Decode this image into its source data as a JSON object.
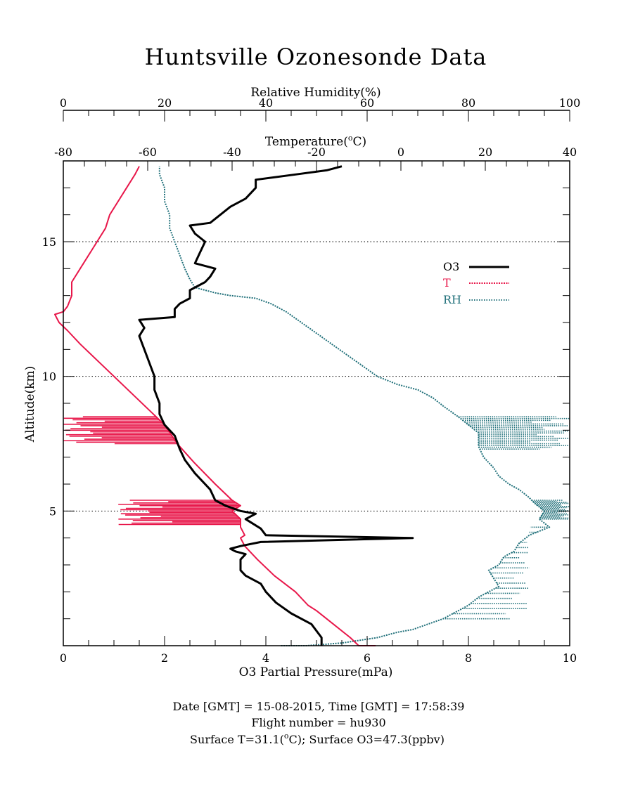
{
  "chart_data": {
    "type": "line",
    "title": "Huntsville Ozonesonde Data",
    "axes": {
      "altitude": {
        "label": "Altitude(km)",
        "range": [
          0,
          18
        ],
        "ticks": [
          5,
          10,
          15
        ]
      },
      "o3": {
        "label": "O3 Partial Pressure(mPa)",
        "range": [
          0,
          10
        ],
        "ticks": [
          0,
          2,
          4,
          6,
          8,
          10
        ]
      },
      "temperature": {
        "label_main": "Temperature(",
        "label_sup": "o",
        "label_tail": "C)",
        "range": [
          -80,
          40
        ],
        "ticks": [
          -80,
          -60,
          -40,
          -20,
          0,
          20,
          40
        ]
      },
      "rh": {
        "label": "Relative Humidity(%)",
        "range": [
          0,
          100
        ],
        "ticks": [
          0,
          20,
          40,
          60,
          80,
          100
        ]
      }
    },
    "grid": "dotted horizontal lines at 5, 10, 15 km",
    "legend_position": "right",
    "legend": [
      {
        "label": "O3",
        "color": "#000000"
      },
      {
        "label": "T",
        "color": "#e8174a"
      },
      {
        "label": "RH",
        "color": "#20707a"
      }
    ],
    "series": [
      {
        "name": "O3",
        "axis": "o3",
        "color": "#000000",
        "points": [
          [
            5.1,
            0.0
          ],
          [
            5.1,
            0.3
          ],
          [
            4.9,
            0.8
          ],
          [
            4.5,
            1.2
          ],
          [
            4.2,
            1.6
          ],
          [
            4.0,
            2.0
          ],
          [
            3.9,
            2.3
          ],
          [
            3.6,
            2.6
          ],
          [
            3.5,
            2.8
          ],
          [
            3.5,
            3.2
          ],
          [
            3.6,
            3.4
          ],
          [
            3.4,
            3.5
          ],
          [
            3.3,
            3.6
          ],
          [
            3.5,
            3.7
          ],
          [
            3.9,
            3.85
          ],
          [
            6.9,
            4.0
          ],
          [
            4.0,
            4.1
          ],
          [
            3.9,
            4.35
          ],
          [
            3.6,
            4.7
          ],
          [
            3.8,
            4.9
          ],
          [
            3.5,
            5.0
          ],
          [
            3.2,
            5.2
          ],
          [
            3.0,
            5.4
          ],
          [
            2.9,
            5.8
          ],
          [
            2.8,
            6.0
          ],
          [
            2.6,
            6.4
          ],
          [
            2.4,
            6.9
          ],
          [
            2.3,
            7.3
          ],
          [
            2.2,
            7.8
          ],
          [
            2.0,
            8.2
          ],
          [
            1.9,
            8.6
          ],
          [
            1.9,
            9.0
          ],
          [
            1.8,
            9.5
          ],
          [
            1.8,
            10.0
          ],
          [
            1.7,
            10.5
          ],
          [
            1.6,
            11.0
          ],
          [
            1.5,
            11.5
          ],
          [
            1.6,
            11.8
          ],
          [
            1.5,
            12.1
          ],
          [
            2.2,
            12.2
          ],
          [
            2.2,
            12.5
          ],
          [
            2.3,
            12.7
          ],
          [
            2.5,
            12.9
          ],
          [
            2.5,
            13.2
          ],
          [
            2.8,
            13.5
          ],
          [
            2.9,
            13.7
          ],
          [
            3.0,
            14.0
          ],
          [
            2.6,
            14.2
          ],
          [
            2.7,
            14.6
          ],
          [
            2.8,
            15.0
          ],
          [
            2.6,
            15.3
          ],
          [
            2.5,
            15.6
          ],
          [
            2.9,
            15.7
          ],
          [
            3.1,
            16.0
          ],
          [
            3.3,
            16.3
          ],
          [
            3.6,
            16.6
          ],
          [
            3.8,
            17.0
          ],
          [
            3.8,
            17.3
          ],
          [
            4.6,
            17.5
          ],
          [
            5.2,
            17.65
          ],
          [
            5.5,
            17.8
          ]
        ]
      },
      {
        "name": "T",
        "axis": "temperature",
        "color": "#e8174a",
        "points": [
          [
            -6,
            0.0
          ],
          [
            -10,
            0.0
          ],
          [
            -12,
            0.3
          ],
          [
            -16,
            0.8
          ],
          [
            -20,
            1.3
          ],
          [
            -22,
            1.5
          ],
          [
            -25,
            2.0
          ],
          [
            -30,
            2.6
          ],
          [
            -34,
            3.2
          ],
          [
            -37,
            3.7
          ],
          [
            -38,
            4.0
          ],
          [
            -37,
            4.1
          ],
          [
            -38,
            4.4
          ],
          [
            -38,
            4.7
          ],
          [
            -40,
            5.0
          ],
          [
            -38,
            5.2
          ],
          [
            -40,
            5.4
          ],
          [
            -44,
            6.0
          ],
          [
            -49,
            6.8
          ],
          [
            -53,
            7.5
          ],
          [
            -56,
            8.2
          ],
          [
            -60,
            8.8
          ],
          [
            -64,
            9.4
          ],
          [
            -68,
            10.0
          ],
          [
            -72,
            10.6
          ],
          [
            -76,
            11.2
          ],
          [
            -79,
            11.7
          ],
          [
            -81,
            12.0
          ],
          [
            -82,
            12.3
          ],
          [
            -80,
            12.4
          ],
          [
            -79,
            12.6
          ],
          [
            -78,
            13.0
          ],
          [
            -78,
            13.5
          ],
          [
            -76,
            14.0
          ],
          [
            -74,
            14.5
          ],
          [
            -72,
            15.0
          ],
          [
            -70,
            15.5
          ],
          [
            -69,
            16.0
          ],
          [
            -67,
            16.5
          ],
          [
            -65,
            17.0
          ],
          [
            -63,
            17.5
          ],
          [
            -62,
            17.8
          ]
        ]
      },
      {
        "name": "RH",
        "axis": "rh",
        "color": "#20707a",
        "points": [
          [
            43,
            0.0
          ],
          [
            48,
            0.0
          ],
          [
            55,
            0.1
          ],
          [
            62,
            0.3
          ],
          [
            66,
            0.5
          ],
          [
            69,
            0.6
          ],
          [
            72,
            0.8
          ],
          [
            75,
            1.0
          ],
          [
            78,
            1.3
          ],
          [
            80,
            1.5
          ],
          [
            82,
            1.8
          ],
          [
            84,
            2.0
          ],
          [
            86,
            2.2
          ],
          [
            85,
            2.5
          ],
          [
            84,
            2.8
          ],
          [
            86,
            3.0
          ],
          [
            87,
            3.3
          ],
          [
            89,
            3.5
          ],
          [
            90,
            3.8
          ],
          [
            92,
            4.1
          ],
          [
            96,
            4.4
          ],
          [
            94,
            4.7
          ],
          [
            95,
            5.0
          ],
          [
            93,
            5.3
          ],
          [
            92,
            5.5
          ],
          [
            90,
            5.8
          ],
          [
            88,
            6.0
          ],
          [
            86,
            6.3
          ],
          [
            85,
            6.6
          ],
          [
            83,
            7.0
          ],
          [
            82,
            7.4
          ],
          [
            82,
            7.9
          ],
          [
            80,
            8.2
          ],
          [
            78,
            8.5
          ],
          [
            75,
            8.9
          ],
          [
            73,
            9.2
          ],
          [
            70,
            9.5
          ],
          [
            66,
            9.7
          ],
          [
            62,
            10.0
          ],
          [
            59,
            10.4
          ],
          [
            56,
            10.8
          ],
          [
            53,
            11.2
          ],
          [
            50,
            11.6
          ],
          [
            47,
            12.0
          ],
          [
            44,
            12.4
          ],
          [
            41,
            12.7
          ],
          [
            38,
            12.9
          ],
          [
            33,
            13.0
          ],
          [
            30,
            13.1
          ],
          [
            26,
            13.3
          ],
          [
            25,
            13.6
          ],
          [
            24,
            14.0
          ],
          [
            23,
            14.5
          ],
          [
            22,
            15.0
          ],
          [
            21,
            15.5
          ],
          [
            21,
            16.0
          ],
          [
            20,
            16.5
          ],
          [
            20,
            17.0
          ],
          [
            19,
            17.5
          ],
          [
            19,
            17.8
          ]
        ]
      }
    ],
    "spike_bands": [
      {
        "series": "T",
        "axis": "temperature",
        "altitude_range": [
          7.5,
          8.5
        ],
        "extend_to": -80
      },
      {
        "series": "T",
        "axis": "temperature",
        "altitude_range": [
          4.5,
          5.4
        ],
        "extend_to": -67
      },
      {
        "series": "RH",
        "axis": "rh",
        "altitude_range": [
          7.3,
          8.5
        ],
        "extend_to": 100
      },
      {
        "series": "RH",
        "axis": "rh",
        "altitude_range": [
          4.7,
          5.4
        ],
        "extend_to": 100
      },
      {
        "series": "RH",
        "axis": "rh",
        "altitude_range": [
          1.0,
          4.4
        ],
        "extend_to": 92
      }
    ]
  },
  "footer": {
    "line1": "Date [GMT] = 15-08-2015,  Time [GMT] = 17:58:39",
    "line2": "Flight number = hu930",
    "line3_a": "Surface T=31.1(",
    "line3_sup": "o",
    "line3_b": "C); Surface O3=47.3(ppbv)"
  }
}
